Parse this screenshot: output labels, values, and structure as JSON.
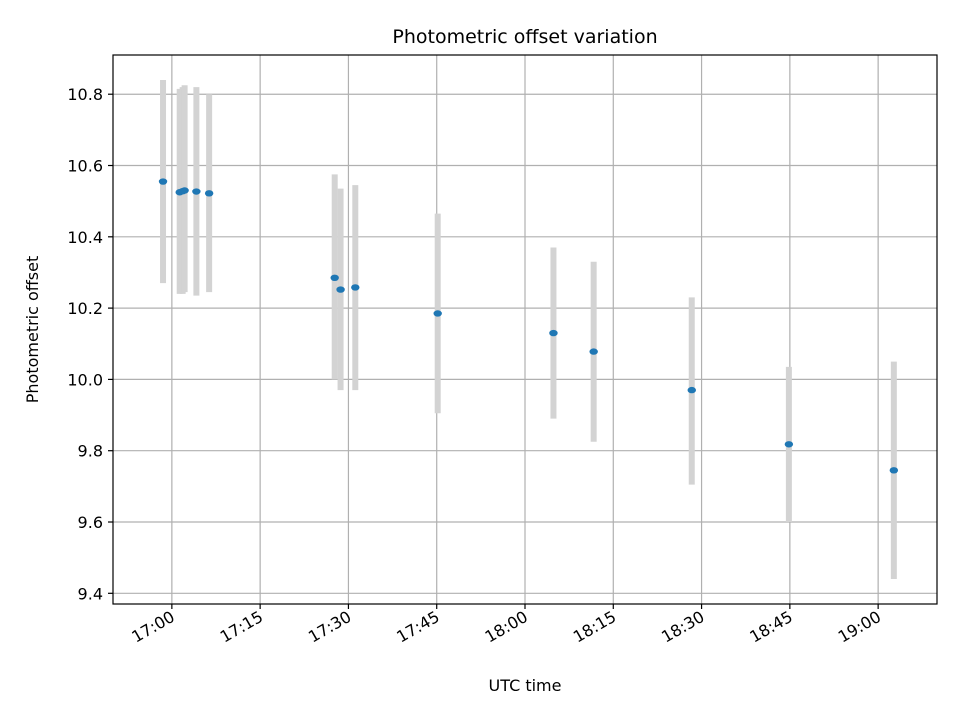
{
  "chart_data": {
    "type": "scatter",
    "title": "Photometric offset variation",
    "xlabel": "UTC time",
    "ylabel": "Photometric offset",
    "grid": true,
    "legend": "none",
    "xlim": [
      "16:50",
      "19:10"
    ],
    "ylim": [
      9.37,
      10.91
    ],
    "x_ticks": [
      "17:00",
      "17:15",
      "17:30",
      "17:45",
      "18:00",
      "18:15",
      "18:30",
      "18:45",
      "19:00"
    ],
    "y_ticks": [
      "9.4",
      "9.6",
      "9.8",
      "10.0",
      "10.2",
      "10.4",
      "10.6",
      "10.8"
    ],
    "colors": {
      "point": "#1f77b4",
      "errorbar": "#d3d3d3",
      "grid": "#b0b0b0"
    },
    "series": [
      {
        "points": [
          {
            "x": "16:58:30",
            "y": 10.555,
            "err_low": 10.27,
            "err_high": 10.84
          },
          {
            "x": "17:01:20",
            "y": 10.525,
            "err_low": 10.24,
            "err_high": 10.815
          },
          {
            "x": "17:01:50",
            "y": 10.528,
            "err_low": 10.24,
            "err_high": 10.82
          },
          {
            "x": "17:02:10",
            "y": 10.53,
            "err_low": 10.245,
            "err_high": 10.825
          },
          {
            "x": "17:04:10",
            "y": 10.527,
            "err_low": 10.235,
            "err_high": 10.82
          },
          {
            "x": "17:06:20",
            "y": 10.522,
            "err_low": 10.245,
            "err_high": 10.8
          },
          {
            "x": "17:27:40",
            "y": 10.285,
            "err_low": 10.0,
            "err_high": 10.575
          },
          {
            "x": "17:28:40",
            "y": 10.252,
            "err_low": 9.97,
            "err_high": 10.535
          },
          {
            "x": "17:31:10",
            "y": 10.258,
            "err_low": 9.97,
            "err_high": 10.545
          },
          {
            "x": "17:45:10",
            "y": 10.185,
            "err_low": 9.905,
            "err_high": 10.465
          },
          {
            "x": "18:04:50",
            "y": 10.13,
            "err_low": 9.89,
            "err_high": 10.37
          },
          {
            "x": "18:11:40",
            "y": 10.078,
            "err_low": 9.825,
            "err_high": 10.33
          },
          {
            "x": "18:28:20",
            "y": 9.97,
            "err_low": 9.705,
            "err_high": 10.23
          },
          {
            "x": "18:44:50",
            "y": 9.818,
            "err_low": 9.6,
            "err_high": 10.035
          },
          {
            "x": "19:02:40",
            "y": 9.745,
            "err_low": 9.44,
            "err_high": 10.05
          }
        ]
      }
    ]
  }
}
